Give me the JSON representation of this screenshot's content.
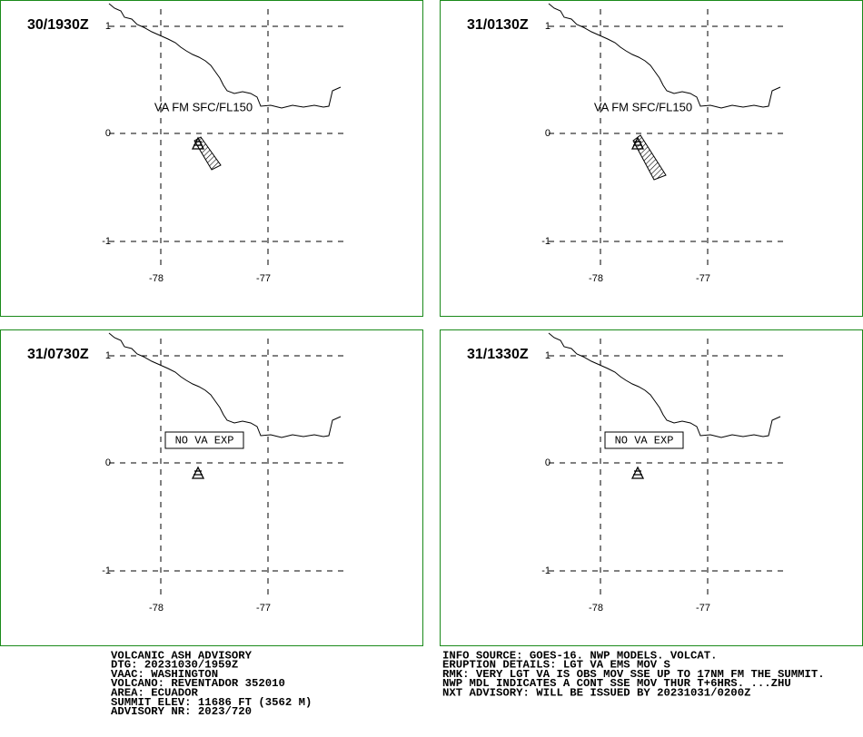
{
  "panels": [
    {
      "time": "30/1930Z",
      "annotation": "VA FM SFC/FL150"
    },
    {
      "time": "31/0130Z",
      "annotation": "VA FM SFC/FL150"
    },
    {
      "time": "31/0730Z",
      "annotation": "NO VA EXP"
    },
    {
      "time": "31/1330Z",
      "annotation": "NO VA EXP"
    }
  ],
  "lat_labels": [
    "1",
    "0",
    "-1"
  ],
  "lon_labels": [
    "-78",
    "-77"
  ],
  "advisory_left": [
    "VOLCANIC ASH ADVISORY",
    "DTG: 20231030/1959Z",
    "VAAC: WASHINGTON",
    "VOLCANO: REVENTADOR 352010",
    "AREA: ECUADOR",
    "SUMMIT ELEV: 11686 FT (3562 M)",
    "ADVISORY NR: 2023/720"
  ],
  "advisory_right": [
    "INFO SOURCE: GOES-16. NWP MODELS. VOLCAT.",
    "ERUPTION DETAILS: LGT VA EMS MOV S",
    "RMK: VERY LGT VA IS OBS MOV SSE UP TO 17NM FM THE SUMMIT.",
    "NWP MDL INDICATES A CONT SSE MOV THUR T+6HRS. ...ZHU",
    "NXT ADVISORY: WILL BE ISSUED BY 20231031/0200Z"
  ]
}
